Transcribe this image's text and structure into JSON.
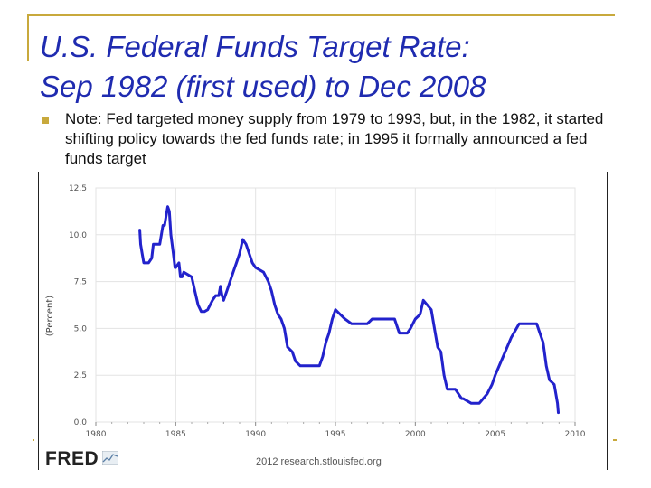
{
  "slide": {
    "title_line1": "U.S. Federal Funds Target Rate:",
    "title_line2": "Sep 1982  (first used) to Dec 2008",
    "note": "Note: Fed targeted money supply from 1979 to 1993, but, in the 1982, it started shifting policy towards the fed funds rate; in 1995 it formally announced a fed funds target",
    "source_logo": "FRED",
    "credit": "2012 research.stlouisfed.org",
    "accent_color": "#c8a93c",
    "title_color": "#1f2bb0"
  },
  "chart_data": {
    "type": "line",
    "title": "",
    "xlabel": "",
    "ylabel": "(Percent)",
    "xlim": [
      1980,
      2010
    ],
    "ylim": [
      0,
      12.5
    ],
    "grid": true,
    "x_ticks": [
      1980,
      1985,
      1990,
      1995,
      2000,
      2005,
      2010
    ],
    "x_tick_labels": [
      "1980",
      "1985",
      "1990",
      "1995",
      "2000",
      "2005",
      "2010"
    ],
    "y_ticks": [
      0,
      2.5,
      5.0,
      7.5,
      10.0,
      12.5
    ],
    "y_tick_labels": [
      "0.0",
      "2.5",
      "5.0",
      "7.5",
      "10.0",
      "12.5"
    ],
    "series": [
      {
        "name": "Federal Funds Target Rate",
        "color": "#2222cc",
        "x": [
          1982.75,
          1982.8,
          1982.9,
          1983.0,
          1983.3,
          1983.5,
          1983.6,
          1984.0,
          1984.2,
          1984.3,
          1984.4,
          1984.5,
          1984.6,
          1984.7,
          1984.85,
          1984.95,
          1985.0,
          1985.2,
          1985.3,
          1985.4,
          1985.5,
          1986.0,
          1986.2,
          1986.4,
          1986.6,
          1986.8,
          1987.0,
          1987.3,
          1987.5,
          1987.7,
          1987.8,
          1987.9,
          1988.0,
          1988.2,
          1988.4,
          1988.6,
          1988.8,
          1989.0,
          1989.2,
          1989.4,
          1989.6,
          1989.8,
          1990.0,
          1990.5,
          1990.8,
          1991.0,
          1991.2,
          1991.4,
          1991.6,
          1991.8,
          1992.0,
          1992.3,
          1992.5,
          1992.8,
          1993.0,
          1994.0,
          1994.2,
          1994.4,
          1994.6,
          1994.8,
          1995.0,
          1995.3,
          1995.6,
          1996.0,
          1996.5,
          1997.0,
          1997.3,
          1998.0,
          1998.7,
          1998.9,
          1999.0,
          1999.5,
          1999.7,
          2000.0,
          2000.3,
          2000.5,
          2001.0,
          2001.2,
          2001.4,
          2001.6,
          2001.8,
          2002.0,
          2002.5,
          2002.9,
          2003.0,
          2003.5,
          2004.0,
          2004.5,
          2004.8,
          2005.0,
          2005.5,
          2006.0,
          2006.5,
          2007.0,
          2007.6,
          2007.8,
          2007.9,
          2008.0,
          2008.2,
          2008.4,
          2008.7,
          2008.8,
          2008.9,
          2008.95
        ],
        "y": [
          10.25,
          9.5,
          9.0,
          8.5,
          8.5,
          8.75,
          9.5,
          9.5,
          10.5,
          10.5,
          11.0,
          11.5,
          11.25,
          10.0,
          9.0,
          8.25,
          8.25,
          8.5,
          7.75,
          7.75,
          8.0,
          7.75,
          7.0,
          6.25,
          5.9,
          5.9,
          6.0,
          6.5,
          6.75,
          6.75,
          7.25,
          6.75,
          6.5,
          7.0,
          7.5,
          8.0,
          8.5,
          9.0,
          9.75,
          9.5,
          9.0,
          8.5,
          8.25,
          8.0,
          7.5,
          7.0,
          6.25,
          5.75,
          5.5,
          5.0,
          4.0,
          3.75,
          3.25,
          3.0,
          3.0,
          3.0,
          3.5,
          4.25,
          4.75,
          5.5,
          6.0,
          5.75,
          5.5,
          5.25,
          5.25,
          5.25,
          5.5,
          5.5,
          5.5,
          5.0,
          4.75,
          4.75,
          5.0,
          5.5,
          5.75,
          6.5,
          6.0,
          5.0,
          4.0,
          3.75,
          2.5,
          1.75,
          1.75,
          1.25,
          1.25,
          1.0,
          1.0,
          1.5,
          2.0,
          2.5,
          3.5,
          4.5,
          5.25,
          5.25,
          5.25,
          4.75,
          4.5,
          4.25,
          3.0,
          2.25,
          2.0,
          1.5,
          1.0,
          0.5
        ]
      }
    ]
  }
}
